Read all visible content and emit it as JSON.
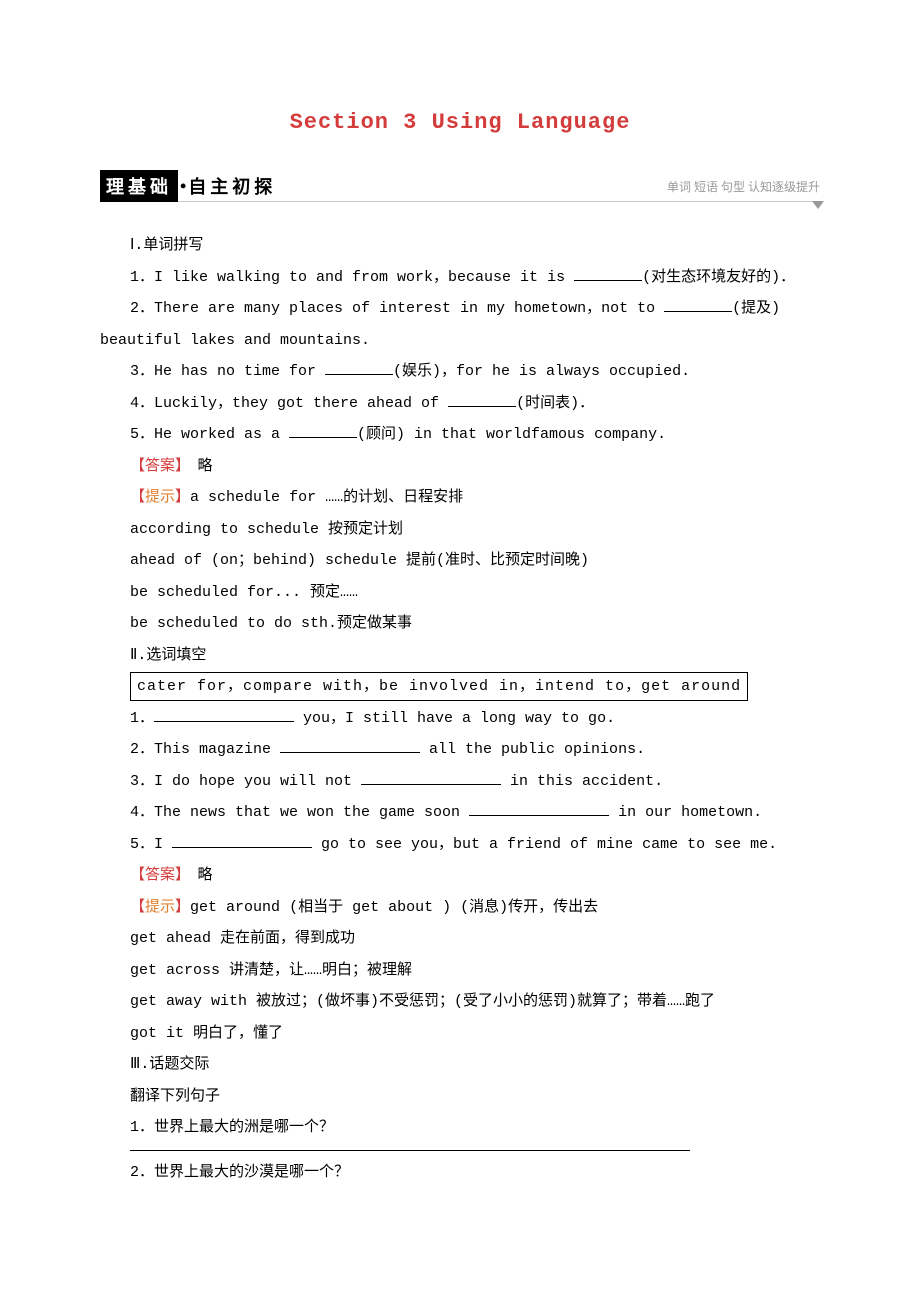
{
  "title": "Section 3  Using  Language",
  "banner": {
    "black": "理基础",
    "white": "自主初探",
    "right": "单词 短语 句型  认知逐级提升"
  },
  "sec1": {
    "heading": "Ⅰ.单词拼写",
    "items": [
      {
        "pre": "1．I like walking to and from work，because it is ",
        "post": "(对生态环境友好的)．"
      },
      {
        "pre": "2．There are many places of interest in my hometown，not to ",
        "post": "(提及)"
      },
      {
        "pre_cont": "beautiful lakes and mountains.",
        "post": ""
      },
      {
        "pre": "3．He has no time for ",
        "post": "(娱乐)，for he is always occupied."
      },
      {
        "pre": "4．Luckily，they got there ahead of ",
        "post": "(时间表)．"
      },
      {
        "pre": "5．He worked as a ",
        "post": "(顾问) in that world­famous company."
      }
    ],
    "answer_label": "【答案】",
    "answer_val": "略",
    "hint_label": "【提示】",
    "hints": [
      "a schedule for ……的计划、日程安排",
      "according to schedule 按预定计划",
      "ahead of (on；behind) schedule 提前(准时、比预定时间晚)",
      "be scheduled for... 预定……",
      "be scheduled to do sth.预定做某事"
    ]
  },
  "sec2": {
    "heading": "Ⅱ.选词填空",
    "wordbox": "cater  for，compare  with，be  involved  in，intend  to，get around",
    "items": [
      {
        "pre": "1．",
        "post": " you，I still have a long way to go."
      },
      {
        "pre": "2．This magazine ",
        "post": " all the public opinions."
      },
      {
        "pre": "3．I do hope you will not ",
        "post": " in this accident."
      },
      {
        "pre": "4．The news that we won the game soon ",
        "post": " in our hometown."
      },
      {
        "pre": "5．I ",
        "post": " go to see you，but a friend of mine came to see me."
      }
    ],
    "answer_label": "【答案】",
    "answer_val": "略",
    "hint_label": "【提示】",
    "hints": [
      "get around (相当于 get about ) (消息)传开，传出去",
      "get ahead 走在前面，得到成功",
      "get across 讲清楚，让……明白；被理解",
      "get away with 被放过；(做坏事)不受惩罚；(受了小小的惩罚)就算了；带着……跑了",
      "got it 明白了，懂了"
    ]
  },
  "sec3": {
    "heading": "Ⅲ.话题交际",
    "sub": "翻译下列句子",
    "q1": "1．世界上最大的洲是哪一个？",
    "q2": "2．世界上最大的沙漠是哪一个？"
  },
  "colors": {
    "title": "#d43c3c",
    "answer": "#d43c3c",
    "hint": "#e08030",
    "text": "#000000",
    "banner_right": "#999999"
  },
  "fonts": {
    "title_size": 22,
    "body_size": 15,
    "banner_size": 18
  }
}
